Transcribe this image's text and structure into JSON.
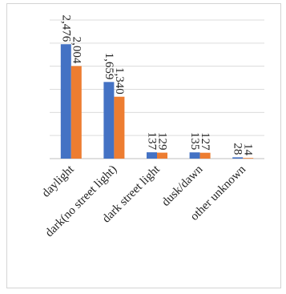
{
  "chart_data": {
    "type": "bar",
    "title": "",
    "xlabel": "",
    "ylabel": "",
    "categories": [
      "daylight",
      "dark(no street light)",
      "dark street light",
      "dusk/dawn",
      "other unknown"
    ],
    "series": [
      {
        "values": [
          2476,
          1659,
          137,
          135,
          28
        ],
        "labels": [
          "2,476",
          "1,659",
          "137",
          "135",
          "28"
        ],
        "color": "#4472c4"
      },
      {
        "values": [
          2004,
          1340,
          129,
          127,
          14
        ],
        "labels": [
          "2,004",
          "1,340",
          "129",
          "127",
          "14"
        ],
        "color": "#ed7d31"
      }
    ],
    "ylim": [
      0,
      3000
    ],
    "grid": true,
    "legend": "none"
  }
}
